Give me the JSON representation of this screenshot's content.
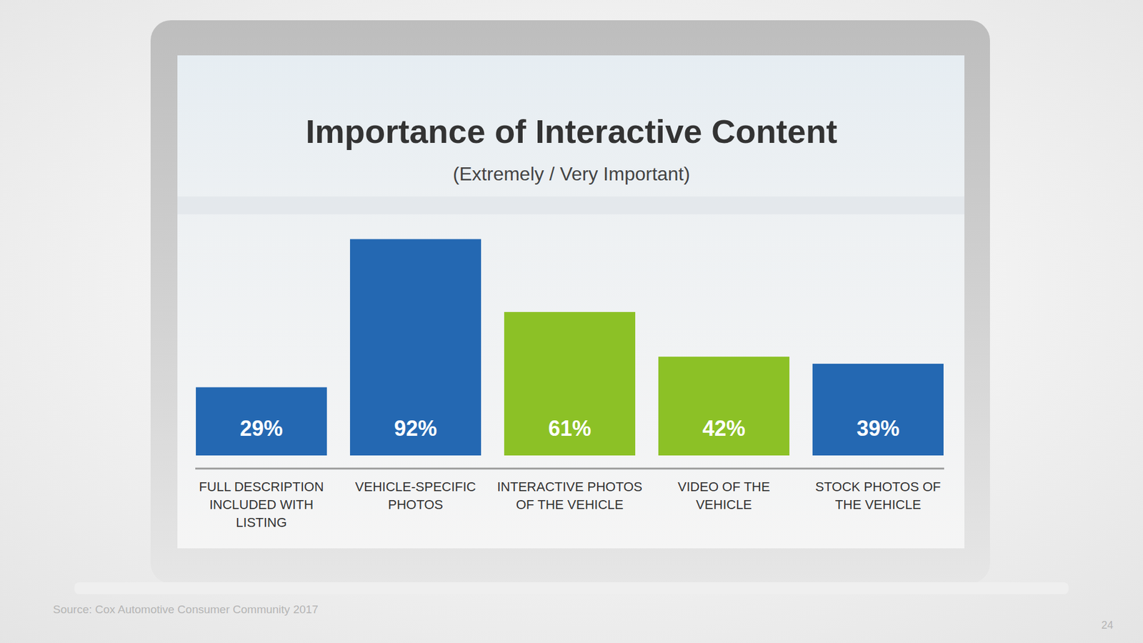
{
  "chart_data": {
    "type": "bar",
    "title": "Importance of Interactive Content",
    "subtitle": "(Extremely / Very Important)",
    "categories": [
      "FULL DESCRIPTION INCLUDED WITH LISTING",
      "VEHICLE-SPECIFIC PHOTOS",
      "INTERACTIVE PHOTOS OF THE VEHICLE",
      "VIDEO OF THE VEHICLE",
      "STOCK PHOTOS OF THE VEHICLE"
    ],
    "values": [
      29,
      92,
      61,
      42,
      39
    ],
    "value_labels": [
      "29%",
      "92%",
      "61%",
      "42%",
      "39%"
    ],
    "colors": [
      "#2468b2",
      "#2468b2",
      "#8cc126",
      "#8cc126",
      "#2468b2"
    ],
    "ylim": [
      0,
      100
    ],
    "data_labels": true,
    "tick_labels": "x",
    "annotations": [
      "Source: Cox Automotive Consumer Community 2017",
      "24"
    ]
  }
}
